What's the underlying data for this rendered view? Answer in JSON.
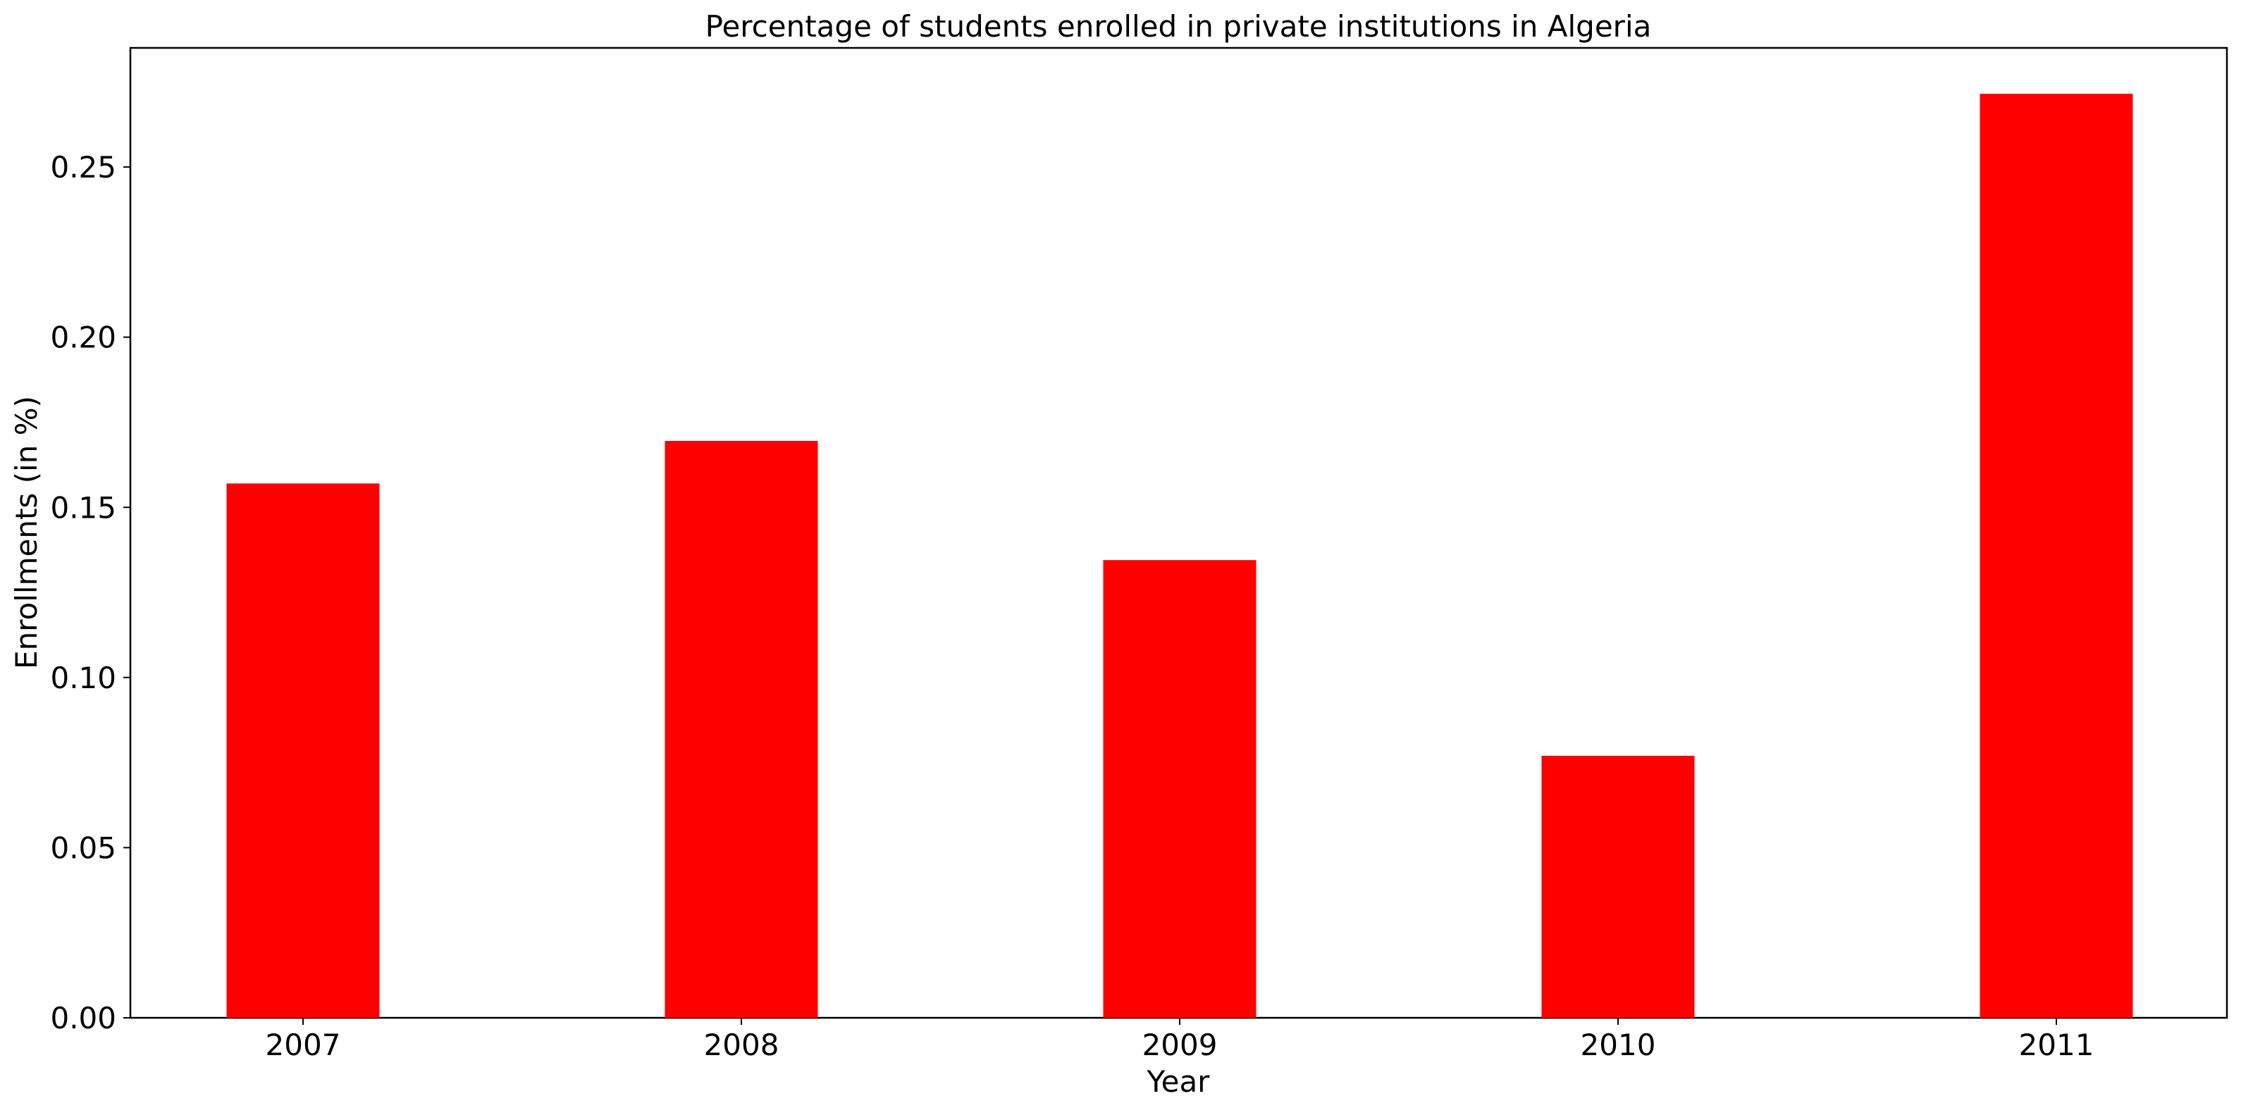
{
  "chart_data": {
    "type": "bar",
    "title": "Percentage of students enrolled in private institutions in Algeria",
    "xlabel": "Year",
    "ylabel": "Enrollments (in %)",
    "categories": [
      "2007",
      "2008",
      "2009",
      "2010",
      "2011"
    ],
    "values": [
      0.157,
      0.1695,
      0.1345,
      0.077,
      0.2715
    ],
    "ylim": [
      0,
      0.285
    ],
    "yticks": [
      0.0,
      0.05,
      0.1,
      0.15,
      0.2,
      0.25
    ],
    "ytick_labels": [
      "0.00",
      "0.05",
      "0.10",
      "0.15",
      "0.20",
      "0.25"
    ],
    "grid": false,
    "legend": "none",
    "bar_color": "#ff0000"
  }
}
